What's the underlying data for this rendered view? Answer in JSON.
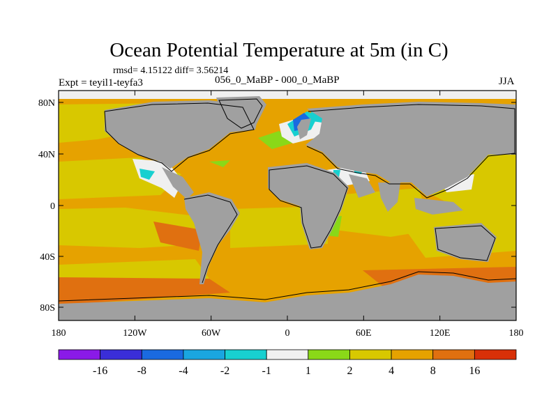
{
  "title": "Ocean Potential Temperature at 5m (in C)",
  "stats": "rmsd= 4.15122 diff= 3.56214",
  "experiment": "Expt = teyil1-teyfa3",
  "comparison": "056_0_MaBP - 000_0_MaBP",
  "season": "JJA",
  "axes": {
    "x_ticks": [
      "180",
      "120W",
      "60W",
      "0",
      "60E",
      "120E",
      "180"
    ],
    "y_ticks": [
      "80N",
      "40N",
      "0",
      "40S",
      "80S"
    ]
  },
  "colorbar": {
    "labels": [
      "-16",
      "-8",
      "-4",
      "-2",
      "-1",
      "1",
      "2",
      "4",
      "8",
      "16"
    ],
    "colors": [
      "#8a1ae8",
      "#3a2ed8",
      "#1a6ae0",
      "#1aa6e0",
      "#18d0d0",
      "#f0f0f0",
      "#8ad818",
      "#d8c800",
      "#e6a200",
      "#e07010",
      "#d83008"
    ]
  },
  "palette": {
    "land": "#a0a0a0",
    "ocean_base": "#e6a200",
    "warm_moderate": "#d8c800",
    "warm_strong": "#e07010",
    "cool": "#f0f0f0",
    "green": "#8ad818",
    "cyan": "#18d0d0",
    "blue": "#1aa6e0",
    "deep_blue": "#1a6ae0"
  }
}
